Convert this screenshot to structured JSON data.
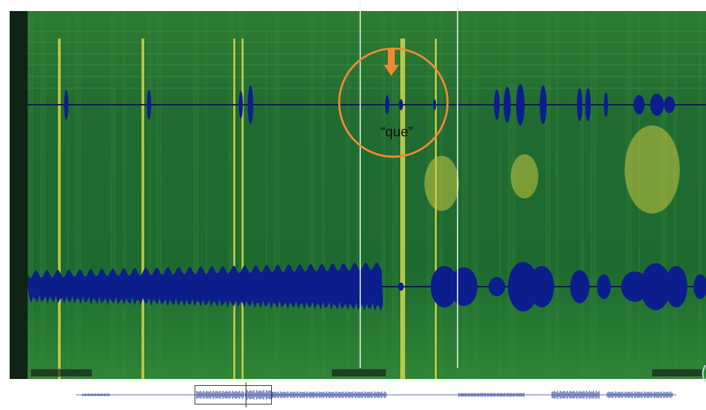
{
  "app": {
    "view": "spectrogram",
    "colors": {
      "background": "#1f6a34",
      "harmonic": "#d6d24a",
      "waveform": "#0c1e8c",
      "annotation": "#f08a34",
      "playhead": "#f0f5f0"
    }
  },
  "annotation": {
    "label": "“que”",
    "shape": "circle",
    "arrow_icon": "arrow-down-icon"
  },
  "timecodes": {
    "left": "",
    "center": "",
    "right": ""
  },
  "navigator": {
    "icon": "waveform-overview"
  }
}
